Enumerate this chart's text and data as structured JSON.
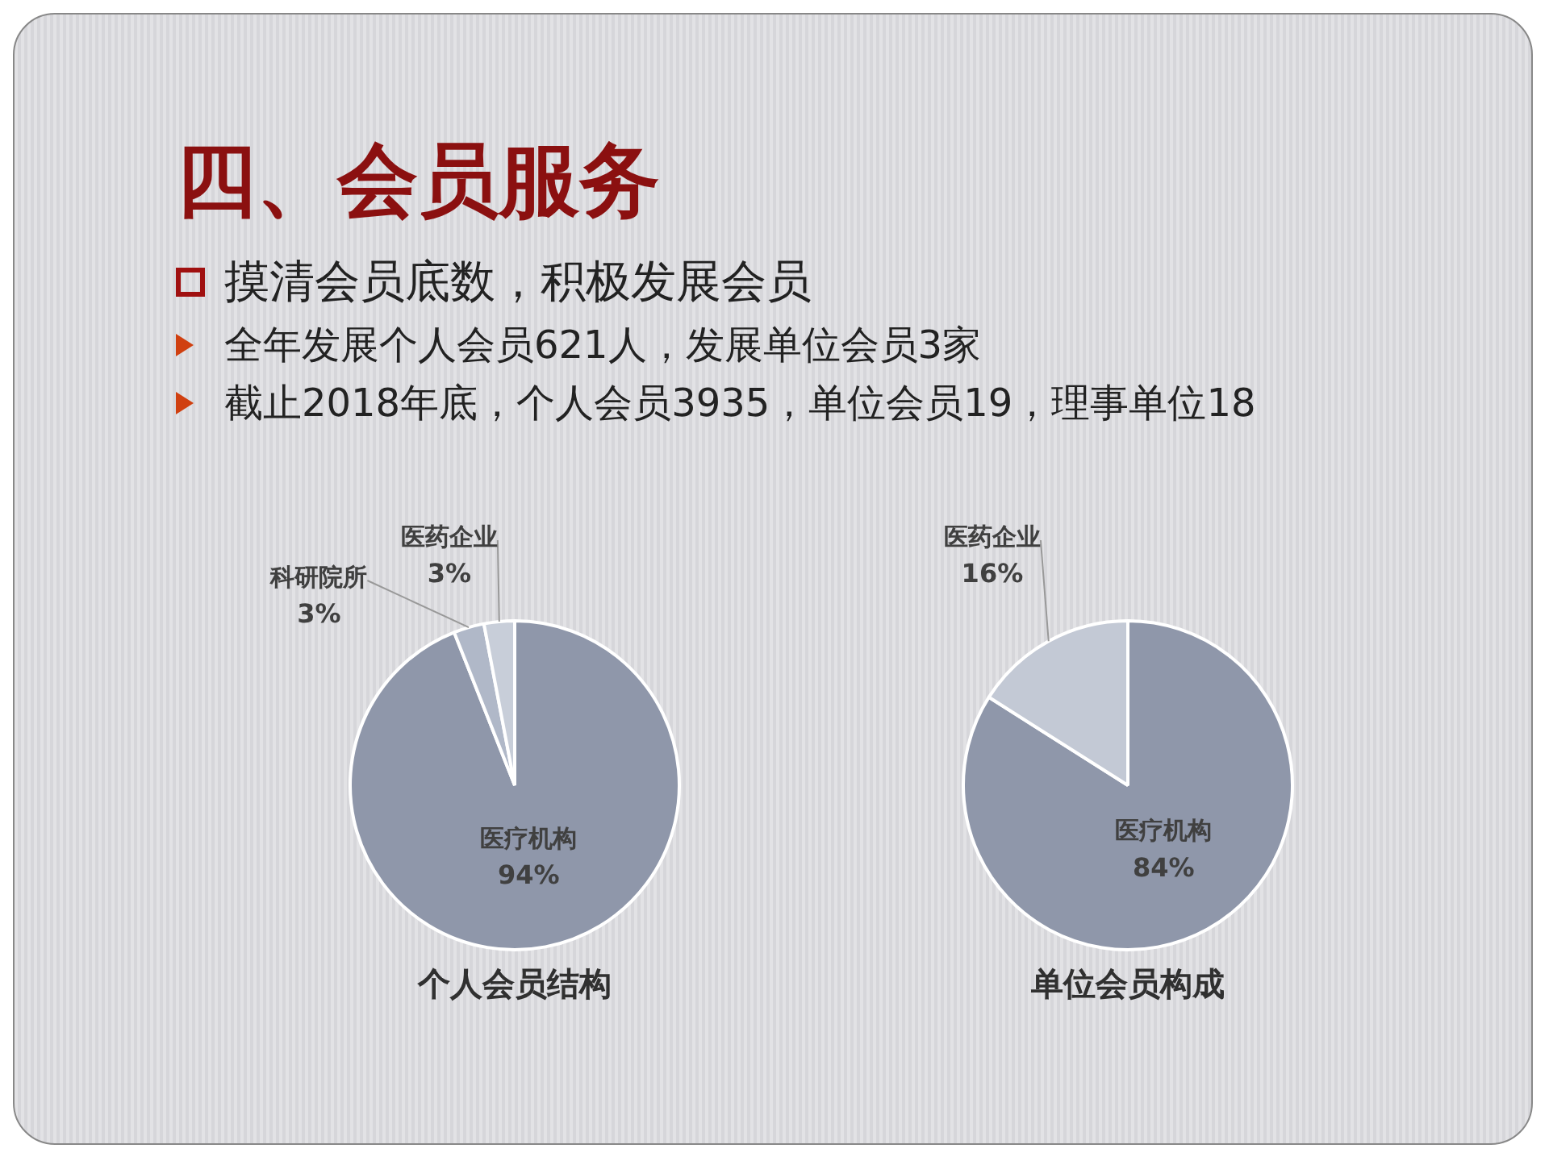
{
  "chart_data": [
    {
      "type": "other",
      "title": "四、会员服务",
      "annotations": [
        "摸清会员底数，积极发展会员",
        "全年发展个人会员621人，发展单位会员3家",
        "截止2018年底，个人会员3935，单位会员19，理事单位18"
      ]
    },
    {
      "type": "pie",
      "title": "个人会员结构",
      "categories": [
        "医疗机构",
        "科研院所",
        "医药企业"
      ],
      "values": [
        94,
        3,
        3
      ],
      "value_labels": [
        "94%",
        "3%",
        "3%"
      ],
      "colors": [
        "#8f97aa",
        "#b0b8c8",
        "#c8ced9"
      ]
    },
    {
      "type": "pie",
      "title": "单位会员构成",
      "categories": [
        "医疗机构",
        "医药企业"
      ],
      "values": [
        84,
        16
      ],
      "value_labels": [
        "84%",
        "16%"
      ],
      "colors": [
        "#8f97aa",
        "#c3c9d5"
      ]
    }
  ]
}
